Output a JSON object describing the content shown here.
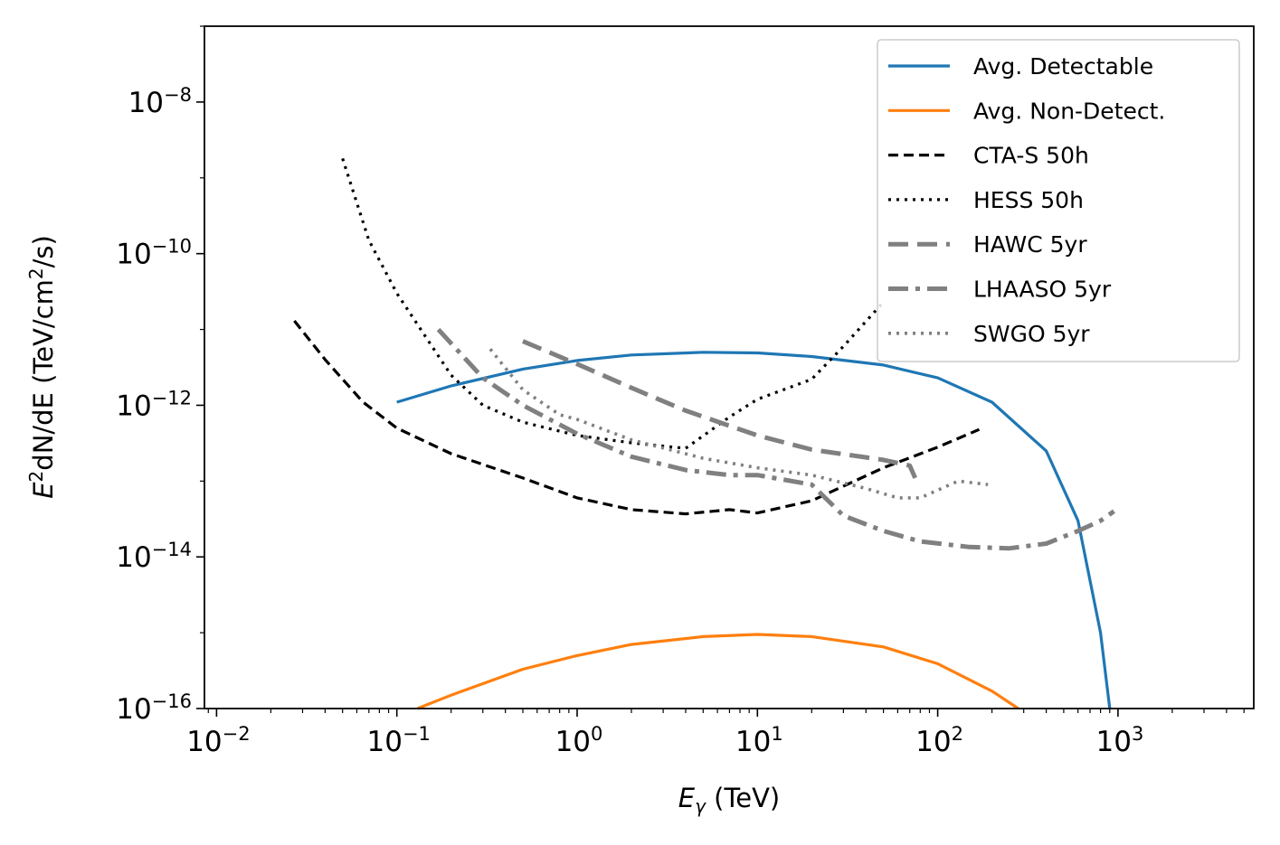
{
  "chart_data": {
    "type": "line",
    "xscale": "log",
    "yscale": "log",
    "xlim": [
      0.008,
      6000
    ],
    "ylim": [
      1e-16,
      1e-07
    ],
    "xlabel": "E_γ (TeV)",
    "ylabel": "E²dN/dE (TeV/cm²/s)",
    "x_ticks": [
      {
        "base": "10",
        "exp": "−2",
        "value": 0.01
      },
      {
        "base": "10",
        "exp": "−1",
        "value": 0.1
      },
      {
        "base": "10",
        "exp": "0",
        "value": 1
      },
      {
        "base": "10",
        "exp": "1",
        "value": 10
      },
      {
        "base": "10",
        "exp": "2",
        "value": 100
      },
      {
        "base": "10",
        "exp": "3",
        "value": 1000
      }
    ],
    "y_ticks": [
      {
        "base": "10",
        "exp": "−8",
        "value": 1e-08
      },
      {
        "base": "10",
        "exp": "−10",
        "value": 1e-10
      },
      {
        "base": "10",
        "exp": "−12",
        "value": 1e-12
      },
      {
        "base": "10",
        "exp": "−14",
        "value": 1e-14
      },
      {
        "base": "10",
        "exp": "−16",
        "value": 1e-16
      }
    ],
    "legend_position": "top-right",
    "series": [
      {
        "name": "Avg. Detectable",
        "color": "#1f77b4",
        "style": "solid",
        "x": [
          0.1,
          0.2,
          0.5,
          1,
          2,
          5,
          10,
          20,
          50,
          100,
          200,
          400,
          600,
          800,
          900
        ],
        "y": [
          1.1e-12,
          1.8e-12,
          3e-12,
          3.9e-12,
          4.6e-12,
          5e-12,
          4.9e-12,
          4.4e-12,
          3.4e-12,
          2.3e-12,
          1.1e-12,
          2.5e-13,
          3e-14,
          1e-15,
          1e-16
        ]
      },
      {
        "name": "Avg. Non-Detect.",
        "color": "#ff7f0e",
        "style": "solid",
        "x": [
          0.13,
          0.2,
          0.5,
          1,
          2,
          5,
          10,
          20,
          50,
          100,
          200,
          280
        ],
        "y": [
          1e-16,
          1.5e-16,
          3.3e-16,
          5e-16,
          7e-16,
          8.9e-16,
          9.5e-16,
          8.9e-16,
          6.5e-16,
          3.9e-16,
          1.7e-16,
          1e-16
        ]
      },
      {
        "name": "CTA-S 50h",
        "color": "#000000",
        "style": "dashed",
        "x": [
          0.027,
          0.04,
          0.065,
          0.1,
          0.2,
          0.5,
          1,
          2,
          4,
          7,
          10,
          20,
          50,
          100,
          170
        ],
        "y": [
          1.3e-11,
          4e-12,
          1.1e-12,
          5e-13,
          2.3e-13,
          1.1e-13,
          6e-14,
          4.2e-14,
          3.7e-14,
          4.2e-14,
          3.8e-14,
          5.5e-14,
          1.5e-13,
          2.8e-13,
          4.8e-13
        ]
      },
      {
        "name": "HESS 50h",
        "color": "#000000",
        "style": "dotted",
        "x": [
          0.05,
          0.07,
          0.1,
          0.15,
          0.2,
          0.3,
          0.5,
          1,
          2,
          4,
          7,
          10,
          20,
          30,
          50
        ],
        "y": [
          1.8e-09,
          1.5e-10,
          3e-11,
          7e-12,
          2.5e-12,
          1e-12,
          6e-13,
          4e-13,
          3.2e-13,
          2.7e-13,
          7e-13,
          1.2e-12,
          2.2e-12,
          6e-12,
          2.3e-11
        ]
      },
      {
        "name": "HAWC 5yr",
        "color": "#808080",
        "style": "dashed-long",
        "x": [
          0.5,
          1,
          2,
          4,
          10,
          20,
          50,
          70,
          75
        ],
        "y": [
          7e-12,
          3.5e-12,
          1.7e-12,
          8.5e-13,
          4e-13,
          2.6e-13,
          1.9e-13,
          1.6e-13,
          1.1e-13
        ]
      },
      {
        "name": "LHAASO 5yr",
        "color": "#808080",
        "style": "dashdot",
        "x": [
          0.17,
          0.3,
          0.5,
          1,
          2,
          4,
          7,
          10,
          20,
          30,
          50,
          80,
          150,
          250,
          400,
          600,
          800,
          950
        ],
        "y": [
          1e-11,
          2.3e-12,
          1e-12,
          4.2e-13,
          2.1e-13,
          1.4e-13,
          1.2e-13,
          1.2e-13,
          9e-14,
          3.5e-14,
          2.2e-14,
          1.6e-14,
          1.35e-14,
          1.3e-14,
          1.5e-14,
          2.2e-14,
          3e-14,
          4e-14
        ]
      },
      {
        "name": "SWGO 5yr",
        "color": "#808080",
        "style": "dotted-gray",
        "x": [
          0.33,
          0.5,
          0.8,
          1,
          2,
          5,
          10,
          20,
          40,
          60,
          80,
          130,
          190
        ],
        "y": [
          5.5e-12,
          1.6e-12,
          7.5e-13,
          6.5e-13,
          3.5e-13,
          2e-13,
          1.5e-13,
          1.2e-13,
          8e-14,
          6e-14,
          6e-14,
          1e-13,
          9e-14
        ]
      }
    ]
  }
}
